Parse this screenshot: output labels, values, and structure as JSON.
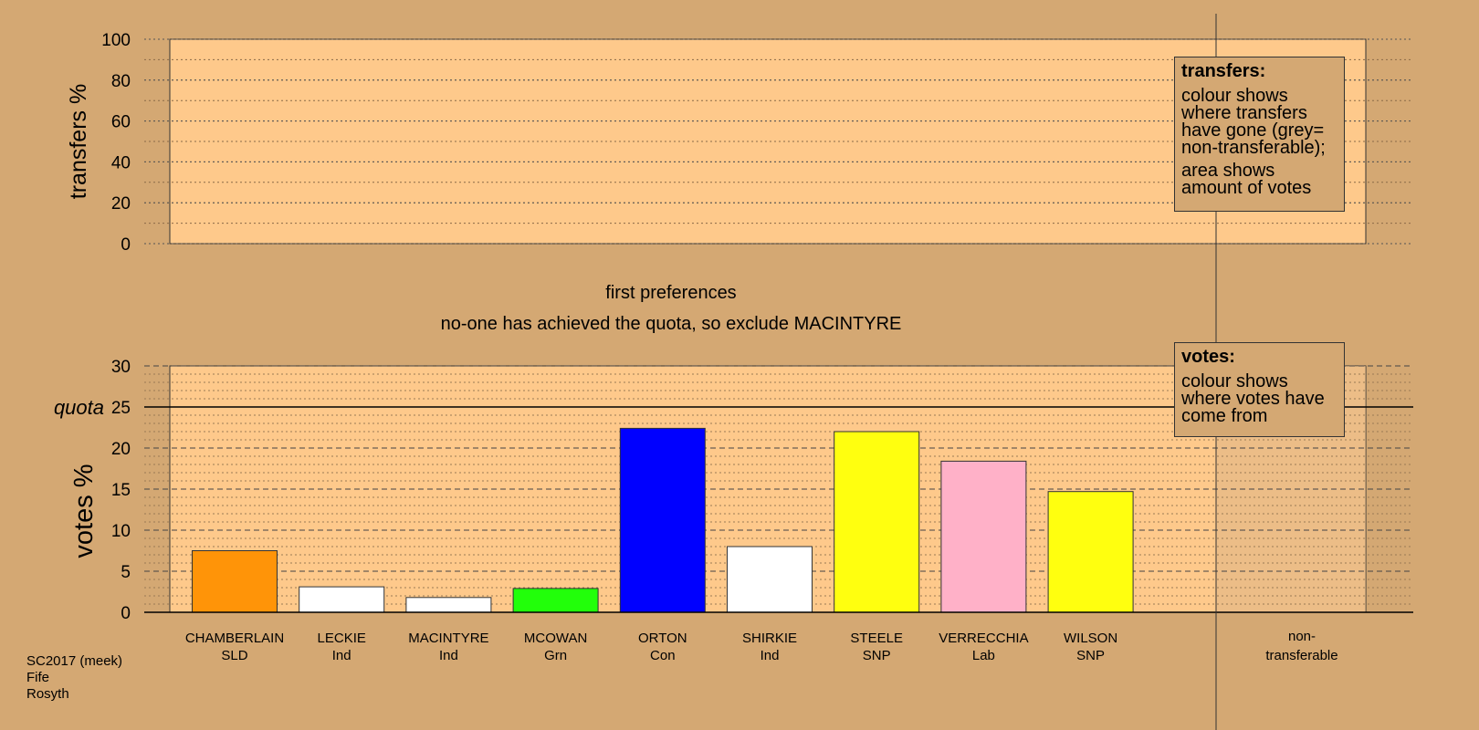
{
  "chart_data": [
    {
      "type": "bar",
      "ylabel": "transfers %",
      "ylim": [
        0,
        100
      ],
      "yticks": [
        0,
        20,
        40,
        60,
        80,
        100
      ],
      "series": []
    },
    {
      "type": "bar",
      "ylabel": "votes %",
      "ylim": [
        0,
        30
      ],
      "yticks": [
        0,
        5,
        10,
        15,
        20,
        25,
        30
      ],
      "quota": 25,
      "quota_label": "quota",
      "categories": [
        {
          "name": "CHAMBERLAIN",
          "party": "SLD",
          "value": 7.5,
          "color": "#ff9408"
        },
        {
          "name": "LECKIE",
          "party": "Ind",
          "value": 3.1,
          "color": "#ffffff"
        },
        {
          "name": "MACINTYRE",
          "party": "Ind",
          "value": 1.8,
          "color": "#ffffff"
        },
        {
          "name": "MCOWAN",
          "party": "Grn",
          "value": 2.9,
          "color": "#22ff0a"
        },
        {
          "name": "ORTON",
          "party": "Con",
          "value": 22.4,
          "color": "#0000ff"
        },
        {
          "name": "SHIRKIE",
          "party": "Ind",
          "value": 8.0,
          "color": "#ffffff"
        },
        {
          "name": "STEELE",
          "party": "SNP",
          "value": 22.0,
          "color": "#ffff0f"
        },
        {
          "name": "VERRECCHIA",
          "party": "Lab",
          "value": 18.4,
          "color": "#ffb1c8"
        },
        {
          "name": "WILSON",
          "party": "SNP",
          "value": 14.7,
          "color": "#ffff0f"
        }
      ],
      "nontransferable": {
        "line1": "non-",
        "line2": "transferable"
      }
    }
  ],
  "legends": {
    "transfers": {
      "heading": "transfers:",
      "text1": "colour shows where transfers have gone (grey= non-transferable);",
      "text2": "area shows amount of votes"
    },
    "votes": {
      "heading": "votes:",
      "text1": "colour shows where votes have come from"
    }
  },
  "stage": {
    "line1": "first preferences",
    "line2": "no-one has achieved the quota, so exclude MACINTYRE"
  },
  "footer": {
    "line1": "SC2017 (meek)",
    "line2": "Fife",
    "line3": "Rosyth"
  },
  "colors": {
    "background": "#d4a873",
    "plot_area": "#fec98b"
  }
}
